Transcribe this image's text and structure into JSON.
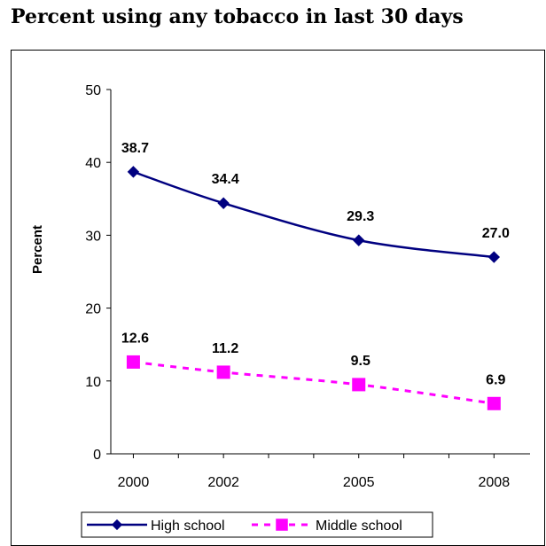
{
  "chart_data": {
    "type": "line",
    "title": "Percent using any tobacco in last 30 days",
    "ylabel": "Percent",
    "xlabel": "",
    "x": [
      2000,
      2002,
      2005,
      2008
    ],
    "ylim": [
      0,
      50
    ],
    "yticks": [
      0,
      10,
      20,
      30,
      40,
      50
    ],
    "grid": false,
    "legend_position": "bottom",
    "series": [
      {
        "name": "High school",
        "values": [
          38.7,
          34.4,
          29.3,
          27.0
        ],
        "labels": [
          "38.7",
          "34.4",
          "29.3",
          "27.0"
        ],
        "color": "#000080",
        "marker": "diamond",
        "line_style": "solid"
      },
      {
        "name": "Middle school",
        "values": [
          12.6,
          11.2,
          9.5,
          6.9
        ],
        "labels": [
          "12.6",
          "11.2",
          "9.5",
          "6.9"
        ],
        "color": "#ff00ff",
        "marker": "square",
        "line_style": "dashed"
      }
    ]
  }
}
